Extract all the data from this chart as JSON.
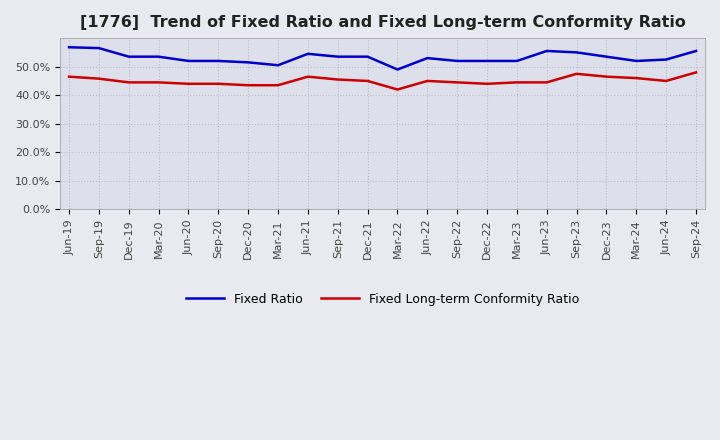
{
  "title": "[1776]  Trend of Fixed Ratio and Fixed Long-term Conformity Ratio",
  "x_labels": [
    "Jun-19",
    "Sep-19",
    "Dec-19",
    "Mar-20",
    "Jun-20",
    "Sep-20",
    "Dec-20",
    "Mar-21",
    "Jun-21",
    "Sep-21",
    "Dec-21",
    "Mar-22",
    "Jun-22",
    "Sep-22",
    "Dec-22",
    "Mar-23",
    "Jun-23",
    "Sep-23",
    "Dec-23",
    "Mar-24",
    "Jun-24",
    "Sep-24"
  ],
  "fixed_ratio": [
    56.8,
    56.5,
    53.5,
    53.5,
    52.0,
    52.0,
    51.5,
    50.5,
    54.5,
    53.5,
    53.5,
    49.0,
    53.0,
    52.0,
    52.0,
    52.0,
    55.5,
    55.0,
    53.5,
    52.0,
    52.5,
    55.5
  ],
  "fixed_lt_ratio": [
    46.5,
    45.8,
    44.5,
    44.5,
    44.0,
    44.0,
    43.5,
    43.5,
    46.5,
    45.5,
    45.0,
    42.0,
    45.0,
    44.5,
    44.0,
    44.5,
    44.5,
    47.5,
    46.5,
    46.0,
    45.0,
    48.0
  ],
  "fixed_ratio_color": "#0000cc",
  "fixed_lt_ratio_color": "#cc0000",
  "ylim": [
    0,
    60
  ],
  "yticks": [
    0,
    10,
    20,
    30,
    40,
    50
  ],
  "ytick_labels": [
    "0.0%",
    "10.0%",
    "20.0%",
    "30.0%",
    "40.0%",
    "50.0%"
  ],
  "bg_color": "#e8eaf0",
  "plot_bg_color": "#dde0ea",
  "grid_color": "#bbbbcc",
  "legend_fixed_ratio": "Fixed Ratio",
  "legend_fixed_lt_ratio": "Fixed Long-term Conformity Ratio",
  "title_fontsize": 11.5,
  "tick_fontsize": 8,
  "line_width": 1.8
}
